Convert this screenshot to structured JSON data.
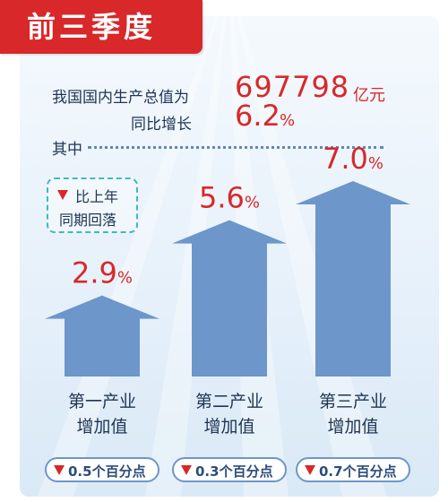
{
  "header": {
    "title": "前三季度",
    "gdp_label": "我国国内生产总值为",
    "gdp_value": "697798",
    "gdp_unit": "亿元",
    "growth_label": "同比增长",
    "growth_value": "6.2",
    "growth_unit": "%",
    "among_label": "其中"
  },
  "decline_note": {
    "line1": "比上年",
    "line2": "同期回落"
  },
  "colors": {
    "accent_red": "#d8282a",
    "arrow_blue": "#6d96ca",
    "text_navy": "#1f3553"
  },
  "chart_data": {
    "type": "bar",
    "categories": [
      [
        "第一产业",
        "增加值"
      ],
      [
        "第二产业",
        "增加值"
      ],
      [
        "第三产业",
        "增加值"
      ]
    ],
    "values": [
      2.9,
      5.6,
      7.0
    ],
    "value_labels": [
      "2.9",
      "5.6",
      "7.0"
    ],
    "value_unit": "%",
    "decline_values": [
      0.5,
      0.3,
      0.7
    ],
    "decline_labels": [
      "0.5个百分点",
      "0.3个百分点",
      "0.7个百分点"
    ],
    "title": "",
    "xlabel": "",
    "ylabel": "",
    "ylim": [
      0,
      7.0
    ]
  }
}
